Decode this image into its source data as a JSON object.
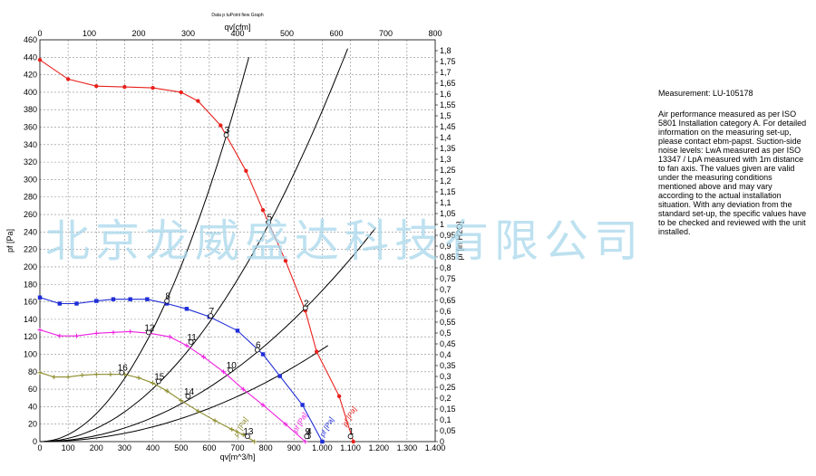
{
  "header_note": "Data p tuPoint fiew Graph",
  "info": {
    "title": "Measurement: LU-105178",
    "body": "Air performance measured as per ISO 5801 Installation category A. For detailed information on the measuring set-up, please contact ebm-papst. Suction-side noise levels: LwA measured as per ISO 13347 / LpA measured with 1m distance to fan axis. The values given are valid under the measuring conditions mentioned above and may vary according to the actual installation situation. With any deviation from the standard set-up, the specific values have to be checked and reviewed with the unit installed."
  },
  "watermark": "北京龙威盛达科技有限公司",
  "chart_data": {
    "type": "line",
    "title": "",
    "xlabel": "qv[m^3/h]",
    "x2label": "qv[cfm]",
    "ylabel": "pf [Pa]",
    "y2label": "pf [in H2O]",
    "xlim": [
      0,
      1400
    ],
    "ylim": [
      0,
      460
    ],
    "x2lim": [
      0,
      800
    ],
    "y2lim": [
      0,
      1.85
    ],
    "grid": true,
    "x_ticks": [
      "0",
      "100",
      "200",
      "300",
      "400",
      "500",
      "600",
      "700",
      "800",
      "900",
      "1.000",
      "1.100",
      "1.200",
      "1.300",
      "1.400"
    ],
    "y_ticks": [
      "0",
      "20",
      "40",
      "60",
      "80",
      "100",
      "120",
      "140",
      "160",
      "180",
      "200",
      "220",
      "240",
      "260",
      "280",
      "300",
      "320",
      "340",
      "360",
      "380",
      "400",
      "420",
      "440",
      "460"
    ],
    "x2_ticks": [
      "0",
      "100",
      "200",
      "300",
      "400",
      "500",
      "600",
      "700",
      "800"
    ],
    "y2_ticks": [
      "0",
      "0,05",
      "0,1",
      "0,15",
      "0,2",
      "0,25",
      "0,3",
      "0,35",
      "0,4",
      "0,45",
      "0,5",
      "0,55",
      "0,6",
      "0,65",
      "0,7",
      "0,75",
      "0,8",
      "0,85",
      "0,9",
      "0,95",
      "1",
      "1,05",
      "1,1",
      "1,15",
      "1,2",
      "1,25",
      "1,3",
      "1,35",
      "1,4",
      "1,45",
      "1,5",
      "1,55",
      "1,6",
      "1,65",
      "1,7",
      "1,75",
      "1,8"
    ],
    "series": [
      {
        "name": "pf [Pa]",
        "color": "#e8211c",
        "marker": "circle",
        "x": [
          0,
          100,
          200,
          300,
          400,
          500,
          560,
          640,
          730,
          790,
          870,
          940,
          980,
          1060,
          1110
        ],
        "y": [
          437,
          415,
          407,
          406,
          405,
          400,
          390,
          362,
          310,
          265,
          207,
          150,
          103,
          52,
          0
        ]
      },
      {
        "name": "pf [Pa]",
        "color": "#1f2cd8",
        "marker": "square",
        "x": [
          0,
          70,
          130,
          200,
          260,
          320,
          380,
          450,
          520,
          600,
          700,
          790,
          850,
          930,
          1000
        ],
        "y": [
          165,
          158,
          158,
          161,
          163,
          163,
          163,
          158,
          152,
          143,
          127,
          100,
          75,
          42,
          0
        ]
      },
      {
        "name": "pf [Pa]",
        "color": "#ee1ee0",
        "marker": "plus",
        "x": [
          0,
          70,
          130,
          200,
          260,
          320,
          390,
          460,
          520,
          580,
          650,
          720,
          790,
          870,
          940
        ],
        "y": [
          128,
          121,
          121,
          124,
          125,
          126,
          124,
          120,
          110,
          97,
          80,
          60,
          42,
          20,
          0
        ]
      },
      {
        "name": "pf [Pa]",
        "color": "#8c8a2a",
        "marker": "plus",
        "x": [
          0,
          50,
          100,
          150,
          200,
          250,
          300,
          350,
          400,
          450,
          500,
          560,
          620,
          680,
          720,
          760
        ],
        "y": [
          79,
          74,
          74,
          76,
          77,
          77,
          77,
          73,
          67,
          58,
          47,
          35,
          24,
          14,
          8,
          0
        ]
      }
    ],
    "system_curves": [
      {
        "color": "#000000",
        "x": [
          0,
          740
        ],
        "y": [
          0,
          440
        ]
      },
      {
        "color": "#000000",
        "x": [
          0,
          1090
        ],
        "y": [
          0,
          450
        ]
      },
      {
        "color": "#000000",
        "x": [
          0,
          1190
        ],
        "y": [
          0,
          245
        ]
      },
      {
        "color": "#000000",
        "x": [
          0,
          1020
        ],
        "y": [
          0,
          110
        ]
      }
    ],
    "curve_tags": [
      {
        "text": "pf [Pa]",
        "color": "#e8211c",
        "x": 1085,
        "y": 17
      },
      {
        "text": "pf [Pa]",
        "color": "#1f2cd8",
        "x": 1005,
        "y": 5
      },
      {
        "text": "pf [Pa]",
        "color": "#ee1ee0",
        "x": 910,
        "y": 10
      },
      {
        "text": "pf [Pa]",
        "color": "#8c8a2a",
        "x": 700,
        "y": 5
      }
    ],
    "point_labels": [
      {
        "text": "3",
        "x": 660,
        "y": 351
      },
      {
        "text": "5",
        "x": 810,
        "y": 251
      },
      {
        "text": "2",
        "x": 940,
        "y": 153
      },
      {
        "text": "1",
        "x": 1100,
        "y": 6
      },
      {
        "text": "8",
        "x": 450,
        "y": 161
      },
      {
        "text": "7",
        "x": 605,
        "y": 144
      },
      {
        "text": "6",
        "x": 770,
        "y": 105
      },
      {
        "text": "4",
        "x": 950,
        "y": 6
      },
      {
        "text": "12",
        "x": 385,
        "y": 125
      },
      {
        "text": "11",
        "x": 535,
        "y": 114
      },
      {
        "text": "10",
        "x": 675,
        "y": 82
      },
      {
        "text": "9",
        "x": 945,
        "y": 6
      },
      {
        "text": "16",
        "x": 290,
        "y": 79
      },
      {
        "text": "15",
        "x": 420,
        "y": 69
      },
      {
        "text": "14",
        "x": 525,
        "y": 52
      },
      {
        "text": "13",
        "x": 735,
        "y": 6
      }
    ]
  }
}
